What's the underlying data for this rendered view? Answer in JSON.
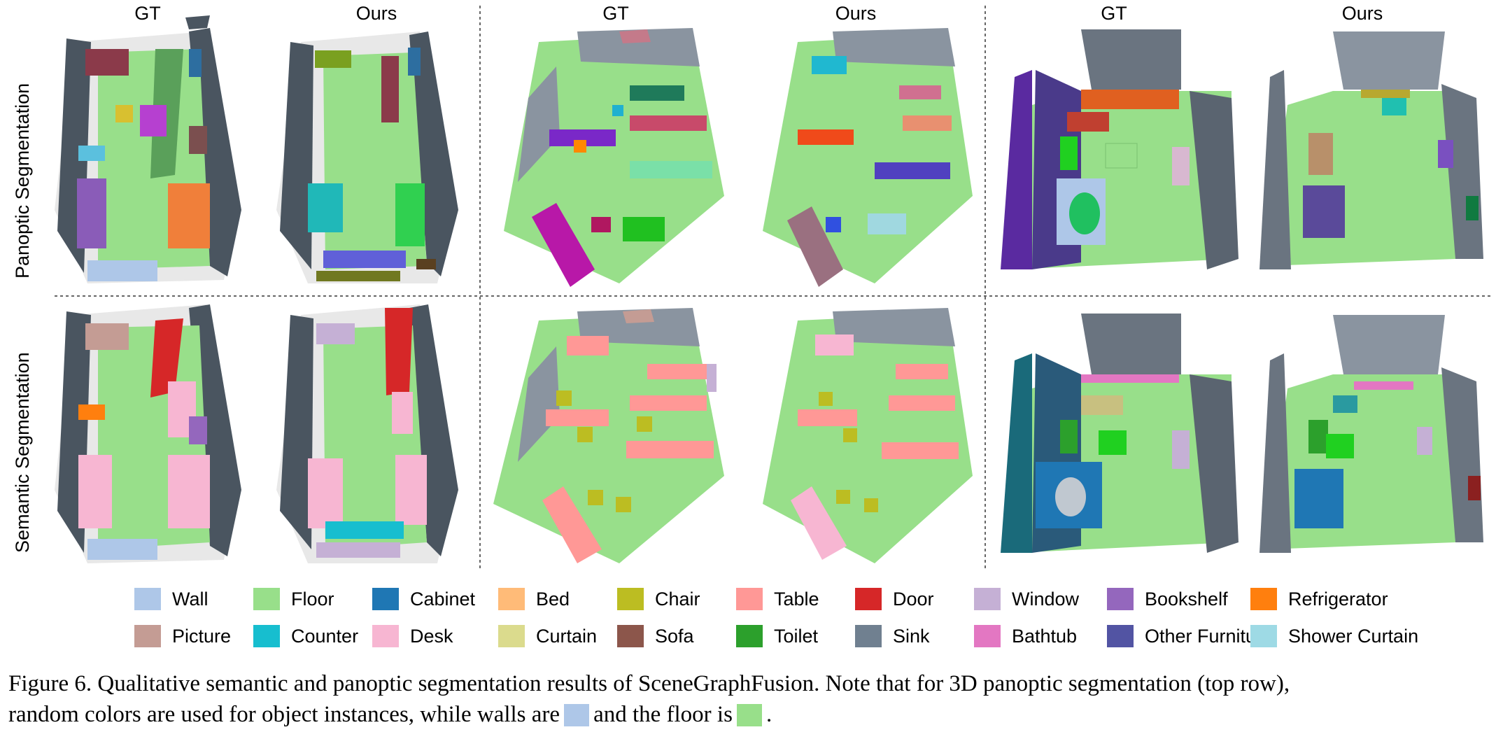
{
  "figure": {
    "column_labels": [
      "GT",
      "Ours",
      "GT",
      "Ours",
      "GT",
      "Ours"
    ],
    "row_labels": [
      "Panoptic Segmentation",
      "Semantic Segmentation"
    ]
  },
  "legend": [
    {
      "label": "Wall",
      "color": "#aec7e8"
    },
    {
      "label": "Floor",
      "color": "#98df8a"
    },
    {
      "label": "Cabinet",
      "color": "#1f77b4"
    },
    {
      "label": "Bed",
      "color": "#ffbb78"
    },
    {
      "label": "Chair",
      "color": "#bcbd22"
    },
    {
      "label": "Table",
      "color": "#ff9896"
    },
    {
      "label": "Door",
      "color": "#d62728"
    },
    {
      "label": "Window",
      "color": "#c5b0d5"
    },
    {
      "label": "Bookshelf",
      "color": "#9467bd"
    },
    {
      "label": "Refrigerator",
      "color": "#ff7f0e"
    },
    {
      "label": "Picture",
      "color": "#c49c94"
    },
    {
      "label": "Counter",
      "color": "#17becf"
    },
    {
      "label": "Desk",
      "color": "#f7b6d2"
    },
    {
      "label": "Curtain",
      "color": "#dbdb8d"
    },
    {
      "label": "Sofa",
      "color": "#8c564b"
    },
    {
      "label": "Toilet",
      "color": "#2ca02c"
    },
    {
      "label": "Sink",
      "color": "#708090"
    },
    {
      "label": "Bathtub",
      "color": "#e377c2"
    },
    {
      "label": "Other Furniture",
      "color": "#5254a3"
    },
    {
      "label": "Shower Curtain",
      "color": "#9edae5"
    }
  ],
  "caption": {
    "line1": "Figure 6. Qualitative semantic and panoptic segmentation results of SceneGraphFusion. Note that for 3D panoptic segmentation (top row),",
    "line2_a": "random colors are used for object instances, while walls are",
    "line2_b": "and the floor is",
    "line2_c": ".",
    "wall_color": "#aec7e8",
    "floor_color": "#98df8a"
  }
}
